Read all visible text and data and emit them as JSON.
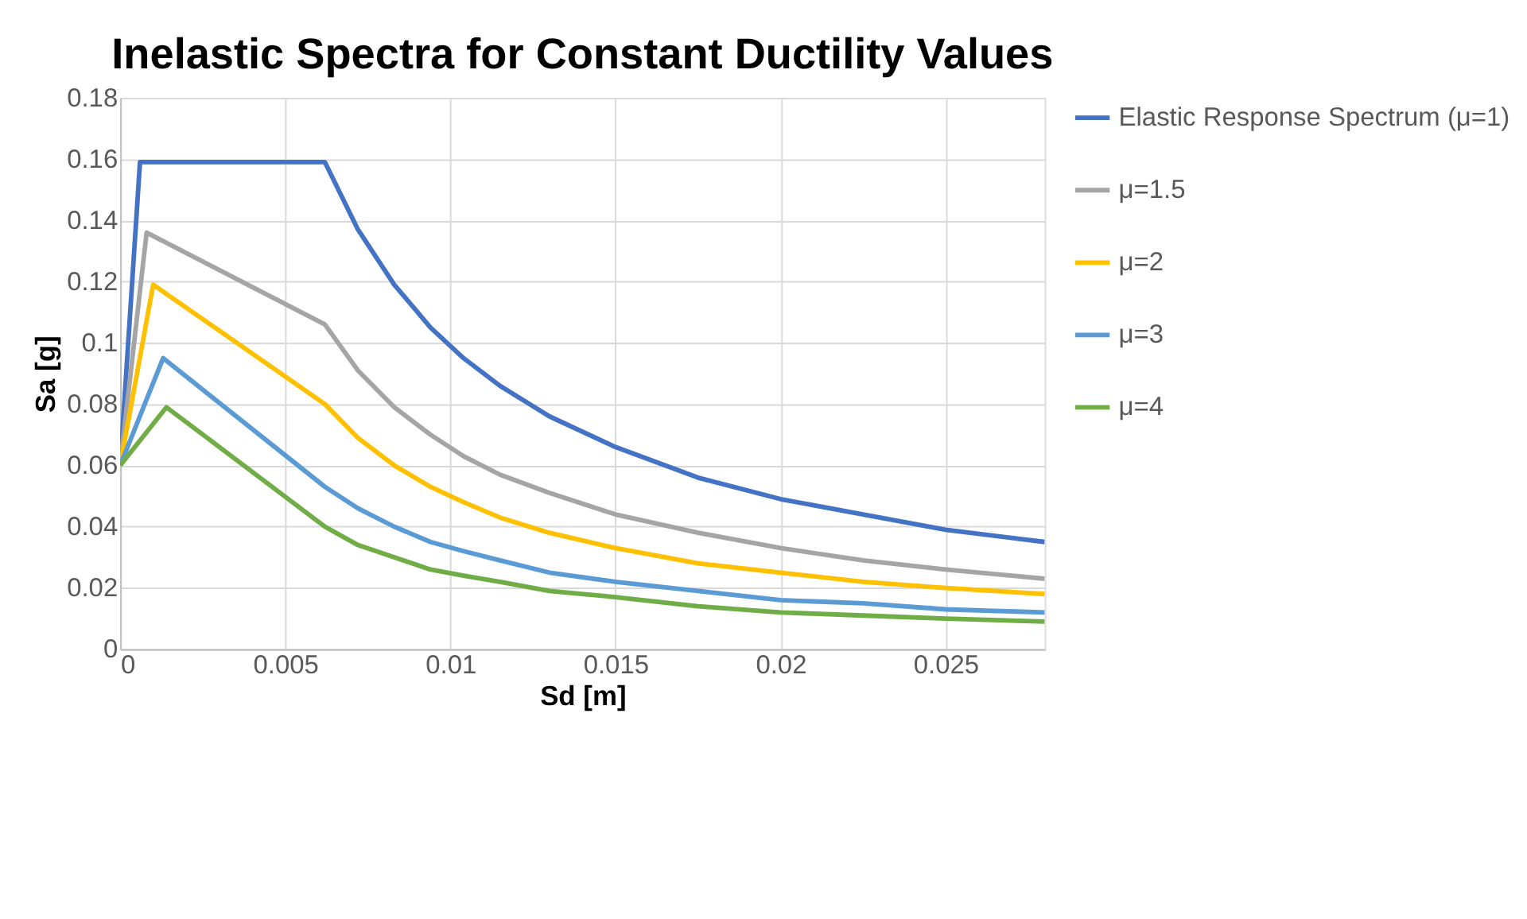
{
  "chart_data": {
    "type": "line",
    "title": "Inelastic Spectra for Constant Ductility Values",
    "xlabel": "Sd [m]",
    "ylabel": "Sa [g]",
    "xlim": [
      0,
      0.028
    ],
    "xticks": [
      0,
      0.005,
      0.01,
      0.015,
      0.02,
      0.025
    ],
    "ylim": [
      0,
      0.18
    ],
    "yticks": [
      0,
      0.02,
      0.04,
      0.06,
      0.08,
      0.1,
      0.12,
      0.14,
      0.16,
      0.18
    ],
    "grid": true,
    "legend": "right",
    "marker": "none",
    "line_style": "solid",
    "series": [
      {
        "name": "Elastic Response Spectrum (μ=1)",
        "color": "#4472c4",
        "x": [
          0,
          0.0006,
          0.0062,
          0.0072,
          0.0083,
          0.0094,
          0.0104,
          0.0115,
          0.013,
          0.015,
          0.0175,
          0.02,
          0.0225,
          0.025,
          0.028
        ],
        "values": [
          0.06,
          0.159,
          0.159,
          0.137,
          0.119,
          0.105,
          0.095,
          0.086,
          0.076,
          0.066,
          0.056,
          0.049,
          0.044,
          0.039,
          0.035
        ]
      },
      {
        "name": "μ=1.5",
        "color": "#a5a5a5",
        "x": [
          0,
          0.0008,
          0.0062,
          0.0072,
          0.0083,
          0.0094,
          0.0104,
          0.0115,
          0.013,
          0.015,
          0.0175,
          0.02,
          0.0225,
          0.025,
          0.028
        ],
        "values": [
          0.06,
          0.136,
          0.106,
          0.091,
          0.079,
          0.07,
          0.063,
          0.057,
          0.051,
          0.044,
          0.038,
          0.033,
          0.029,
          0.026,
          0.023
        ]
      },
      {
        "name": "μ=2",
        "color": "#ffc000",
        "x": [
          0,
          0.001,
          0.0062,
          0.0072,
          0.0083,
          0.0094,
          0.0104,
          0.0115,
          0.013,
          0.015,
          0.0175,
          0.02,
          0.0225,
          0.025,
          0.028
        ],
        "values": [
          0.06,
          0.119,
          0.08,
          0.069,
          0.06,
          0.053,
          0.048,
          0.043,
          0.038,
          0.033,
          0.028,
          0.025,
          0.022,
          0.02,
          0.018
        ]
      },
      {
        "name": "μ=3",
        "color": "#5b9bd5",
        "x": [
          0,
          0.0013,
          0.0062,
          0.0072,
          0.0083,
          0.0094,
          0.0104,
          0.0115,
          0.013,
          0.015,
          0.0175,
          0.02,
          0.0225,
          0.025,
          0.028
        ],
        "values": [
          0.06,
          0.095,
          0.053,
          0.046,
          0.04,
          0.035,
          0.032,
          0.029,
          0.025,
          0.022,
          0.019,
          0.016,
          0.015,
          0.013,
          0.012
        ]
      },
      {
        "name": "μ=4",
        "color": "#70ad47",
        "x": [
          0,
          0.0014,
          0.0062,
          0.0072,
          0.0083,
          0.0094,
          0.0104,
          0.0115,
          0.013,
          0.015,
          0.0175,
          0.02,
          0.0225,
          0.025,
          0.028
        ],
        "values": [
          0.06,
          0.079,
          0.04,
          0.034,
          0.03,
          0.026,
          0.024,
          0.022,
          0.019,
          0.017,
          0.014,
          0.012,
          0.011,
          0.01,
          0.009
        ]
      }
    ]
  }
}
